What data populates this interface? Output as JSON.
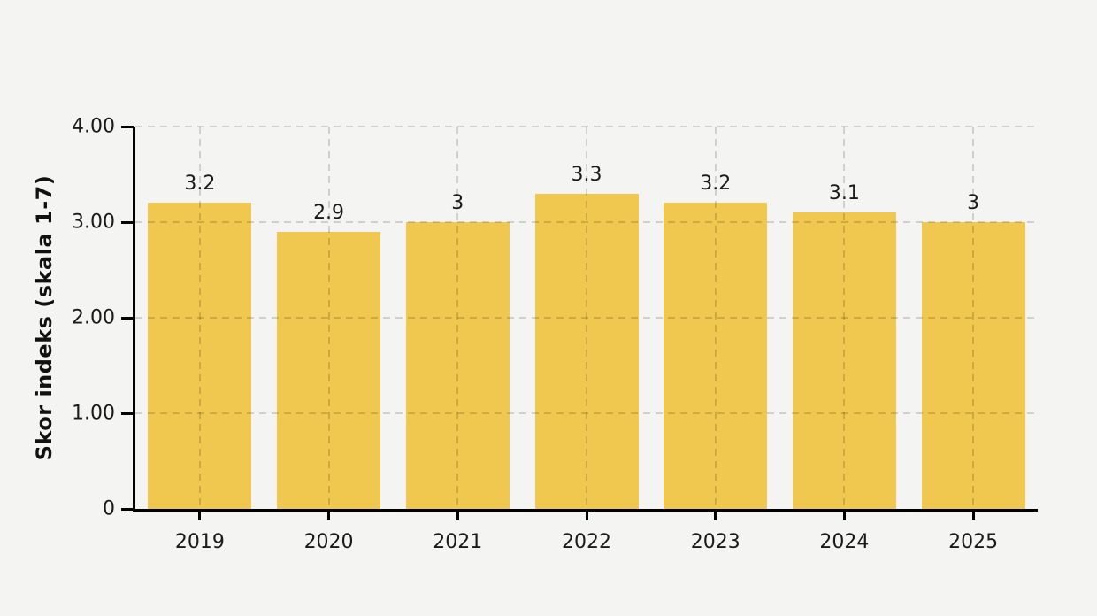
{
  "chart_data": {
    "type": "bar",
    "categories": [
      "2019",
      "2020",
      "2021",
      "2022",
      "2023",
      "2024",
      "2025"
    ],
    "values": [
      3.2,
      2.9,
      3,
      3.3,
      3.2,
      3.1,
      3
    ],
    "bar_labels": [
      "3.2",
      "2.9",
      "3",
      "3.3",
      "3.2",
      "3.1",
      "3"
    ],
    "ylabel": "Skor indeks (skala 1-7)",
    "xlabel": "",
    "ylim": [
      0,
      4
    ],
    "yticks": [
      {
        "value": 0,
        "label": "0"
      },
      {
        "value": 1,
        "label": "1.00"
      },
      {
        "value": 2,
        "label": "2.00"
      },
      {
        "value": 3,
        "label": "3.00"
      },
      {
        "value": 4,
        "label": "4.00"
      }
    ],
    "grid": true,
    "legend": false,
    "colors": {
      "bar": "#f0c74f",
      "background": "#f4f4f2",
      "axis": "#000000",
      "text": "#1a1a1a"
    }
  }
}
